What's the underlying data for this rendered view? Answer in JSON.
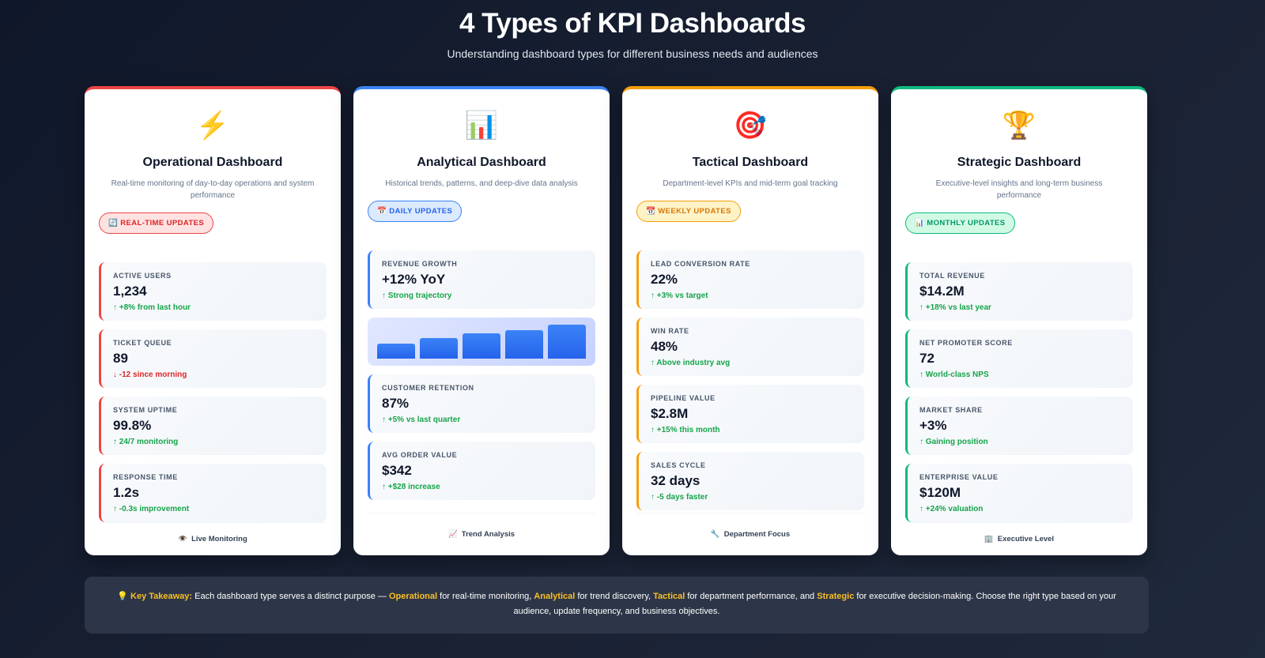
{
  "header": {
    "title": "4 Types of KPI Dashboards",
    "subtitle": "Understanding dashboard types for different business needs and audiences"
  },
  "cards": [
    {
      "icon": "⚡",
      "icon_name": "lightning-icon",
      "title": "Operational Dashboard",
      "description": "Real-time monitoring of day-to-day operations and system performance",
      "badge_icon": "🔄",
      "badge": "REAL-TIME UPDATES",
      "accent": "#ef4444",
      "badge_bg": "#fee2e2",
      "badge_text": "#dc2626",
      "metrics": [
        {
          "label": "ACTIVE USERS",
          "value": "1,234",
          "change": "↑ +8% from last hour",
          "dir": "up"
        },
        {
          "label": "TICKET QUEUE",
          "value": "89",
          "change": "↓ -12 since morning",
          "dir": "down"
        },
        {
          "label": "SYSTEM UPTIME",
          "value": "99.8%",
          "change": "↑ 24/7 monitoring",
          "dir": "up"
        },
        {
          "label": "RESPONSE TIME",
          "value": "1.2s",
          "change": "↑ -0.3s improvement",
          "dir": "up"
        }
      ],
      "footer_icon": "👁️",
      "footer": "Live Monitoring"
    },
    {
      "icon": "📊",
      "icon_name": "bar-chart-icon",
      "title": "Analytical Dashboard",
      "description": "Historical trends, patterns, and deep-dive data analysis",
      "badge_icon": "📅",
      "badge": "DAILY UPDATES",
      "accent": "#3b82f6",
      "badge_bg": "#dbeafe",
      "badge_text": "#2563eb",
      "metrics": [
        {
          "label": "REVENUE GROWTH",
          "value": "+12% YoY",
          "change": "↑ Strong trajectory",
          "dir": "up"
        },
        {
          "label": "CUSTOMER RETENTION",
          "value": "87%",
          "change": "↑ +5% vs last quarter",
          "dir": "up"
        },
        {
          "label": "AVG ORDER VALUE",
          "value": "$342",
          "change": "↑ +$28 increase",
          "dir": "up"
        }
      ],
      "mini_chart": [
        42,
        58,
        72,
        80,
        96
      ],
      "footer_icon": "📈",
      "footer": "Trend Analysis"
    },
    {
      "icon": "🎯",
      "icon_name": "target-icon",
      "title": "Tactical Dashboard",
      "description": "Department-level KPIs and mid-term goal tracking",
      "badge_icon": "📆",
      "badge": "WEEKLY UPDATES",
      "accent": "#f59e0b",
      "badge_bg": "#fef3c7",
      "badge_text": "#d97706",
      "metrics": [
        {
          "label": "LEAD CONVERSION RATE",
          "value": "22%",
          "change": "↑ +3% vs target",
          "dir": "up"
        },
        {
          "label": "WIN RATE",
          "value": "48%",
          "change": "↑ Above industry avg",
          "dir": "up"
        },
        {
          "label": "PIPELINE VALUE",
          "value": "$2.8M",
          "change": "↑ +15% this month",
          "dir": "up"
        },
        {
          "label": "SALES CYCLE",
          "value": "32 days",
          "change": "↑ -5 days faster",
          "dir": "up"
        }
      ],
      "footer_icon": "🔧",
      "footer": "Department Focus"
    },
    {
      "icon": "🏆",
      "icon_name": "trophy-icon",
      "title": "Strategic Dashboard",
      "description": "Executive-level insights and long-term business performance",
      "badge_icon": "📊",
      "badge": "MONTHLY UPDATES",
      "accent": "#10b981",
      "badge_bg": "#d1fae5",
      "badge_text": "#059669",
      "metrics": [
        {
          "label": "TOTAL REVENUE",
          "value": "$14.2M",
          "change": "↑ +18% vs last year",
          "dir": "up"
        },
        {
          "label": "NET PROMOTER SCORE",
          "value": "72",
          "change": "↑ World-class NPS",
          "dir": "up"
        },
        {
          "label": "MARKET SHARE",
          "value": "+3%",
          "change": "↑ Gaining position",
          "dir": "up"
        },
        {
          "label": "ENTERPRISE VALUE",
          "value": "$120M",
          "change": "↑ +24% valuation",
          "dir": "up"
        }
      ],
      "footer_icon": "🏢",
      "footer": "Executive Level"
    }
  ],
  "takeaway": {
    "icon": "💡",
    "label": "Key Takeaway:",
    "t1": " Each dashboard type serves a distinct purpose — ",
    "h1": "Operational",
    "t2": " for real-time monitoring, ",
    "h2": "Analytical",
    "t3": " for trend discovery, ",
    "h3": "Tactical",
    "t4": " for department performance, and ",
    "h4": "Strategic",
    "t5": " for executive decision-making. Choose the right type based on your audience, update frequency, and business objectives."
  }
}
